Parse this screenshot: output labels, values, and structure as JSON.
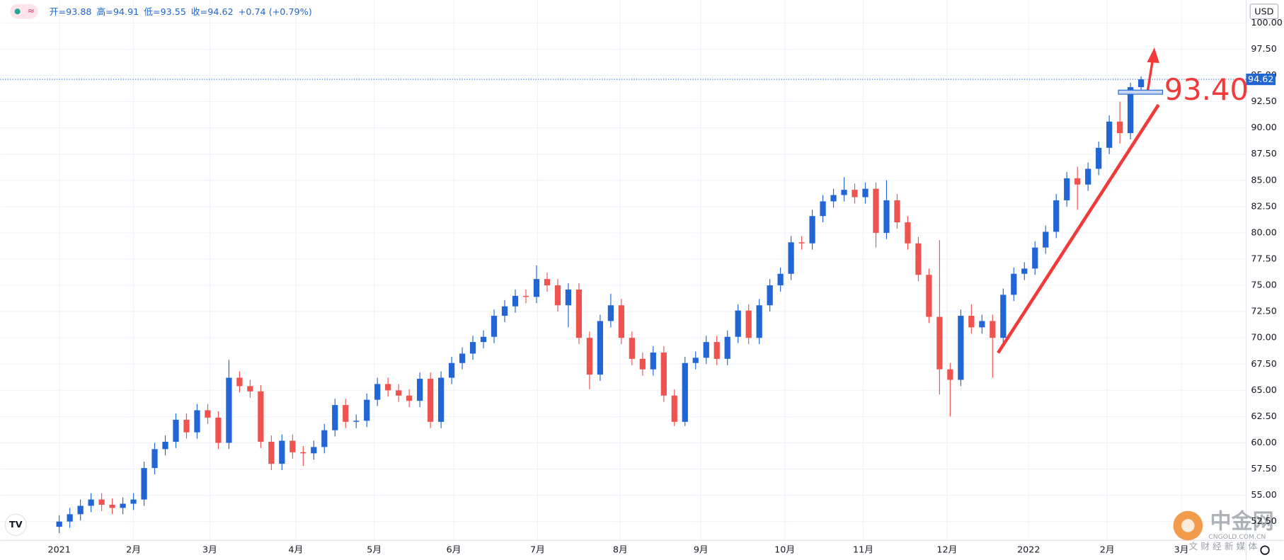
{
  "chart_data": {
    "type": "candlestick",
    "header": [
      "开=93.88",
      "高=94.91",
      "低=93.55",
      "收=94.62",
      "+0.74 (+0.79%)"
    ],
    "currency": "USD",
    "up_color": "#2166d4",
    "down_color": "#ef5350",
    "open": [
      52.0,
      52.5,
      53.2,
      54.0,
      54.6,
      54.1,
      53.8,
      54.2,
      54.6,
      57.6,
      59.4,
      60.1,
      62.2,
      61.0,
      63.1,
      62.4,
      60.0,
      66.2,
      65.4,
      64.9,
      60.1,
      58.0,
      60.2,
      59.1,
      59.0,
      59.6,
      61.2,
      63.6,
      62.0,
      62.1,
      64.1,
      65.6,
      65.0,
      64.5,
      64.0,
      66.1,
      62.0,
      66.2,
      67.6,
      68.5,
      69.6,
      70.1,
      72.1,
      73.0,
      74.0,
      73.9,
      75.6,
      75.0,
      73.1,
      74.6,
      70.0,
      66.5,
      71.6,
      73.1,
      70.0,
      68.0,
      67.0,
      68.6,
      64.5,
      62.0,
      67.6,
      68.1,
      69.6,
      68.0,
      70.1,
      72.6,
      70.0,
      73.1,
      75.0,
      76.1,
      79.1,
      79.0,
      81.6,
      83.0,
      83.6,
      84.1,
      83.4,
      84.2,
      80.0,
      83.1,
      81.0,
      79.0,
      76.0,
      72.0,
      67.0,
      66.0,
      72.1,
      71.0,
      71.6,
      70.0,
      74.1,
      76.1,
      76.6,
      78.6,
      80.1,
      83.1,
      85.2,
      84.6,
      86.1,
      88.1,
      90.6,
      89.5,
      93.88
    ],
    "high": [
      53.1,
      53.8,
      54.6,
      55.2,
      55.2,
      54.7,
      54.8,
      55.2,
      58.2,
      60.0,
      60.7,
      62.8,
      62.8,
      63.7,
      63.7,
      63.0,
      67.9,
      66.8,
      66.0,
      65.5,
      60.7,
      60.8,
      60.8,
      59.7,
      60.2,
      61.8,
      64.2,
      64.2,
      62.7,
      64.7,
      66.2,
      66.2,
      65.6,
      65.1,
      66.7,
      66.7,
      66.8,
      68.2,
      69.1,
      70.2,
      70.7,
      72.7,
      73.6,
      74.6,
      74.6,
      76.9,
      76.2,
      75.6,
      75.2,
      75.2,
      70.6,
      72.2,
      74.2,
      73.7,
      70.6,
      68.6,
      69.2,
      69.2,
      65.1,
      68.2,
      68.7,
      70.2,
      70.2,
      70.7,
      73.2,
      73.2,
      73.7,
      75.6,
      76.7,
      79.7,
      79.7,
      82.2,
      83.6,
      84.2,
      85.3,
      84.7,
      84.8,
      84.8,
      85.0,
      83.7,
      81.6,
      79.6,
      76.6,
      79.3,
      67.6,
      72.7,
      73.2,
      72.2,
      72.2,
      74.7,
      76.7,
      77.2,
      79.2,
      80.7,
      83.7,
      85.8,
      86.3,
      86.7,
      88.7,
      91.2,
      92.5,
      94.3,
      94.91
    ],
    "low": [
      51.4,
      51.9,
      52.6,
      53.4,
      53.5,
      53.2,
      53.2,
      53.6,
      54.0,
      57.0,
      58.8,
      59.5,
      60.4,
      60.4,
      61.8,
      59.4,
      59.4,
      64.8,
      64.3,
      59.5,
      57.4,
      57.4,
      58.5,
      57.8,
      58.4,
      59.0,
      60.6,
      61.4,
      61.4,
      61.5,
      63.5,
      64.4,
      63.9,
      63.4,
      63.4,
      61.4,
      61.4,
      65.6,
      67.0,
      67.9,
      69.0,
      69.5,
      71.5,
      72.4,
      73.3,
      73.3,
      74.4,
      72.5,
      71.0,
      69.4,
      65.1,
      65.9,
      71.0,
      69.4,
      67.4,
      66.4,
      66.4,
      63.9,
      61.6,
      61.6,
      67.0,
      67.5,
      67.4,
      67.4,
      69.5,
      69.4,
      69.4,
      72.5,
      74.4,
      75.5,
      78.4,
      78.4,
      81.0,
      82.4,
      83.0,
      82.8,
      82.8,
      78.6,
      79.4,
      80.4,
      78.4,
      75.4,
      71.4,
      64.6,
      62.5,
      65.4,
      70.4,
      70.4,
      66.2,
      69.4,
      73.5,
      75.5,
      76.0,
      78.0,
      79.5,
      82.5,
      82.2,
      84.0,
      85.5,
      87.5,
      88.5,
      88.9,
      93.55
    ],
    "close": [
      52.5,
      53.2,
      54.0,
      54.6,
      54.1,
      53.8,
      54.2,
      54.6,
      57.6,
      59.4,
      60.1,
      62.2,
      61.0,
      63.1,
      62.4,
      60.0,
      66.2,
      65.4,
      64.9,
      60.1,
      58.0,
      60.2,
      59.1,
      59.0,
      59.6,
      61.2,
      63.6,
      62.0,
      62.1,
      64.1,
      65.6,
      65.0,
      64.5,
      64.0,
      66.1,
      62.0,
      66.2,
      67.6,
      68.5,
      69.6,
      70.1,
      72.1,
      73.0,
      74.0,
      73.9,
      75.6,
      75.0,
      73.1,
      74.6,
      70.0,
      66.5,
      71.6,
      73.1,
      70.0,
      68.0,
      67.0,
      68.6,
      64.5,
      62.0,
      67.6,
      68.1,
      69.6,
      68.0,
      70.1,
      72.6,
      70.0,
      73.1,
      75.0,
      76.1,
      79.1,
      79.0,
      81.6,
      83.0,
      83.6,
      84.1,
      83.4,
      84.2,
      80.0,
      83.1,
      81.0,
      79.0,
      76.0,
      72.0,
      67.0,
      66.0,
      72.1,
      71.0,
      71.6,
      70.0,
      74.1,
      76.1,
      76.6,
      78.6,
      80.1,
      83.1,
      85.2,
      84.6,
      86.1,
      88.1,
      90.6,
      89.5,
      93.88,
      94.62
    ],
    "xlim": [
      -5.56,
      111.9
    ],
    "xticks": [
      {
        "value": 0,
        "label": "2021"
      },
      {
        "value": 7.0,
        "label": "2月"
      },
      {
        "value": 14.2,
        "label": "3月"
      },
      {
        "value": 22.3,
        "label": "4月"
      },
      {
        "value": 29.7,
        "label": "5月"
      },
      {
        "value": 37.2,
        "label": "6月"
      },
      {
        "value": 45.1,
        "label": "7月"
      },
      {
        "value": 52.9,
        "label": "8月"
      },
      {
        "value": 60.5,
        "label": "9月"
      },
      {
        "value": 68.4,
        "label": "10月"
      },
      {
        "value": 75.8,
        "label": "11月"
      },
      {
        "value": 83.7,
        "label": "12月"
      },
      {
        "value": 91.4,
        "label": "2022"
      },
      {
        "value": 98.8,
        "label": "2月"
      },
      {
        "value": 105.8,
        "label": "3月"
      }
    ],
    "ylim": [
      50.71,
      102.18
    ],
    "yticks": [
      {
        "value": 52.5,
        "label": "52.50"
      },
      {
        "value": 55,
        "label": "55.00"
      },
      {
        "value": 57.5,
        "label": "57.50"
      },
      {
        "value": 60,
        "label": "60.00"
      },
      {
        "value": 62.5,
        "label": "62.50"
      },
      {
        "value": 65,
        "label": "65.00"
      },
      {
        "value": 67.5,
        "label": "67.50"
      },
      {
        "value": 70,
        "label": "70.00"
      },
      {
        "value": 72.5,
        "label": "72.50"
      },
      {
        "value": 75,
        "label": "75.00"
      },
      {
        "value": 77.5,
        "label": "77.50"
      },
      {
        "value": 80,
        "label": "80.00"
      },
      {
        "value": 82.5,
        "label": "82.50"
      },
      {
        "value": 85,
        "label": "85.00"
      },
      {
        "value": 87.5,
        "label": "87.50"
      },
      {
        "value": 90,
        "label": "90.00"
      },
      {
        "value": 92.5,
        "label": "92.50"
      },
      {
        "value": 95,
        "label": "95.00"
      },
      {
        "value": 97.5,
        "label": "97.50"
      },
      {
        "value": 100,
        "label": "100.00"
      }
    ],
    "grid": true,
    "last_price": {
      "value": 94.62,
      "label": "94.62"
    },
    "annotation": {
      "value": 93.4,
      "label": "93.40"
    },
    "watermark": {
      "name": "中金网",
      "site": "CNGOLD.COM.CN",
      "slogan": "文 财 经 新 媒 体"
    }
  }
}
